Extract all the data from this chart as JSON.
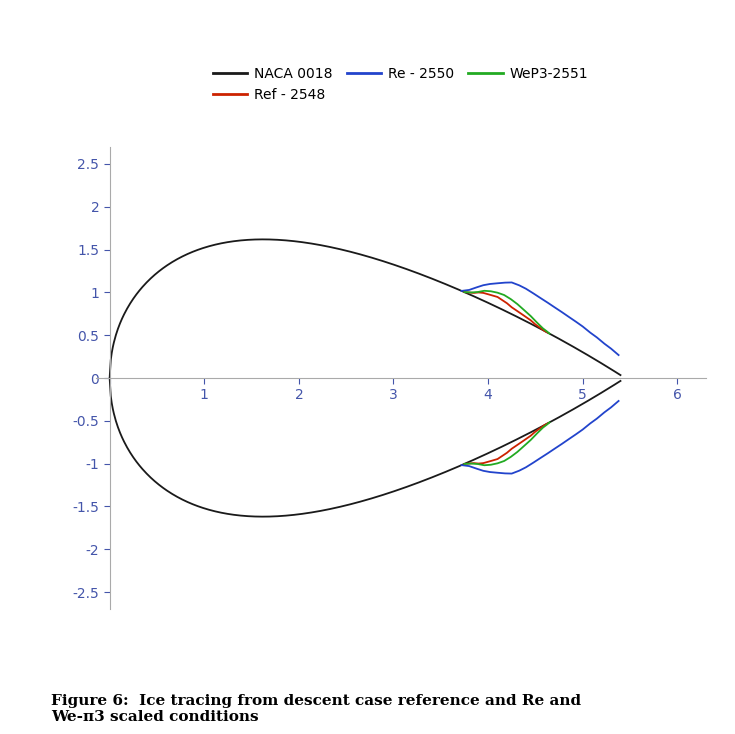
{
  "legend_entries": [
    "NACA 0018",
    "Ref - 2548",
    "Re - 2550",
    "WeP3-2551"
  ],
  "legend_colors": [
    "#1a1a1a",
    "#cc2200",
    "#2244cc",
    "#22aa22"
  ],
  "xlim": [
    -0.15,
    6.3
  ],
  "ylim": [
    -2.7,
    2.7
  ],
  "xticks": [
    0,
    1,
    2,
    3,
    4,
    5,
    6
  ],
  "yticks": [
    -2.5,
    -2.0,
    -1.5,
    -1.0,
    -0.5,
    0.0,
    0.5,
    1.0,
    1.5,
    2.0,
    2.5
  ],
  "naca_color": "#1a1a1a",
  "ref_color": "#cc2200",
  "re_color": "#2244cc",
  "wep3_color": "#22aa22",
  "linewidth": 1.3,
  "chord": 5.4,
  "scale": 9.0,
  "caption": "Figure 6:  Ice tracing from descent case reference and Re and\nWe-π3 scaled conditions"
}
